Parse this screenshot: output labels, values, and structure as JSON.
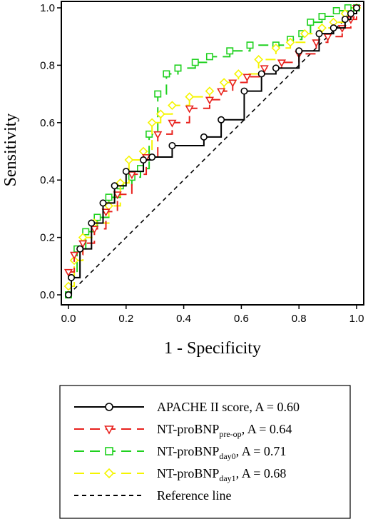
{
  "chart_data": {
    "type": "line",
    "xlabel": "1 - Specificity",
    "ylabel": "Sensitivity",
    "xlim": [
      0,
      1
    ],
    "ylim": [
      0,
      1
    ],
    "xticks": [
      "0.0",
      "0.2",
      "0.4",
      "0.6",
      "0.8",
      "1.0"
    ],
    "yticks": [
      "0.0",
      "0.2",
      "0.4",
      "0.6",
      "0.8",
      "1.0"
    ],
    "legend_placement": "below",
    "series": [
      {
        "name_main": "APACHE II score",
        "name_sub": "",
        "auc_text": ", A = 0.60",
        "color": "#000000",
        "dash": "none",
        "marker": "circle",
        "points": [
          [
            0,
            0
          ],
          [
            0.01,
            0.06
          ],
          [
            0.04,
            0.16
          ],
          [
            0.08,
            0.25
          ],
          [
            0.12,
            0.32
          ],
          [
            0.16,
            0.38
          ],
          [
            0.2,
            0.43
          ],
          [
            0.26,
            0.47
          ],
          [
            0.29,
            0.48
          ],
          [
            0.36,
            0.52
          ],
          [
            0.47,
            0.55
          ],
          [
            0.53,
            0.61
          ],
          [
            0.61,
            0.71
          ],
          [
            0.67,
            0.77
          ],
          [
            0.72,
            0.79
          ],
          [
            0.8,
            0.85
          ],
          [
            0.87,
            0.91
          ],
          [
            0.92,
            0.93
          ],
          [
            0.96,
            0.96
          ],
          [
            0.98,
            0.98
          ],
          [
            1,
            1
          ]
        ]
      },
      {
        "name_main": "NT-proBNP",
        "name_sub": "pre-op",
        "auc_text": ", A = 0.64",
        "color": "#e8211d",
        "dash": "14,8",
        "marker": "triangle",
        "points": [
          [
            0,
            0.08
          ],
          [
            0.02,
            0.14
          ],
          [
            0.05,
            0.18
          ],
          [
            0.09,
            0.23
          ],
          [
            0.13,
            0.29
          ],
          [
            0.17,
            0.35
          ],
          [
            0.22,
            0.42
          ],
          [
            0.27,
            0.48
          ],
          [
            0.31,
            0.56
          ],
          [
            0.36,
            0.6
          ],
          [
            0.42,
            0.65
          ],
          [
            0.49,
            0.68
          ],
          [
            0.53,
            0.71
          ],
          [
            0.57,
            0.74
          ],
          [
            0.62,
            0.76
          ],
          [
            0.68,
            0.79
          ],
          [
            0.74,
            0.81
          ],
          [
            0.8,
            0.84
          ],
          [
            0.86,
            0.88
          ],
          [
            0.9,
            0.9
          ],
          [
            0.95,
            0.93
          ],
          [
            0.98,
            0.96
          ],
          [
            1,
            1
          ]
        ]
      },
      {
        "name_main": "NT-proBNP",
        "name_sub": "day0",
        "auc_text": ", A = 0.71",
        "color": "#1fd11f",
        "dash": "14,8",
        "marker": "square",
        "points": [
          [
            0,
            0
          ],
          [
            0.01,
            0.07
          ],
          [
            0.03,
            0.16
          ],
          [
            0.06,
            0.22
          ],
          [
            0.1,
            0.27
          ],
          [
            0.14,
            0.34
          ],
          [
            0.18,
            0.38
          ],
          [
            0.22,
            0.41
          ],
          [
            0.25,
            0.44
          ],
          [
            0.28,
            0.56
          ],
          [
            0.31,
            0.7
          ],
          [
            0.34,
            0.77
          ],
          [
            0.38,
            0.79
          ],
          [
            0.44,
            0.81
          ],
          [
            0.49,
            0.83
          ],
          [
            0.56,
            0.85
          ],
          [
            0.63,
            0.87
          ],
          [
            0.72,
            0.87
          ],
          [
            0.77,
            0.89
          ],
          [
            0.81,
            0.91
          ],
          [
            0.84,
            0.95
          ],
          [
            0.88,
            0.97
          ],
          [
            0.93,
            0.99
          ],
          [
            0.97,
            1
          ],
          [
            1,
            1
          ]
        ]
      },
      {
        "name_main": "NT-proBNP",
        "name_sub": "day1",
        "auc_text": ", A = 0.68",
        "color": "#f5f500",
        "dash": "14,8",
        "marker": "diamond",
        "points": [
          [
            0,
            0.03
          ],
          [
            0.02,
            0.12
          ],
          [
            0.05,
            0.2
          ],
          [
            0.09,
            0.25
          ],
          [
            0.14,
            0.31
          ],
          [
            0.18,
            0.39
          ],
          [
            0.21,
            0.47
          ],
          [
            0.26,
            0.5
          ],
          [
            0.29,
            0.6
          ],
          [
            0.32,
            0.63
          ],
          [
            0.36,
            0.66
          ],
          [
            0.42,
            0.69
          ],
          [
            0.49,
            0.71
          ],
          [
            0.54,
            0.74
          ],
          [
            0.59,
            0.77
          ],
          [
            0.66,
            0.82
          ],
          [
            0.72,
            0.86
          ],
          [
            0.77,
            0.88
          ],
          [
            0.82,
            0.91
          ],
          [
            0.88,
            0.93
          ],
          [
            0.92,
            0.95
          ],
          [
            0.96,
            0.98
          ],
          [
            1,
            1
          ]
        ]
      },
      {
        "name_main": "Reference line",
        "name_sub": "",
        "auc_text": "",
        "color": "#000000",
        "dash": "6,5",
        "marker": "none",
        "points": [
          [
            0,
            0
          ],
          [
            1,
            1
          ]
        ]
      }
    ]
  }
}
